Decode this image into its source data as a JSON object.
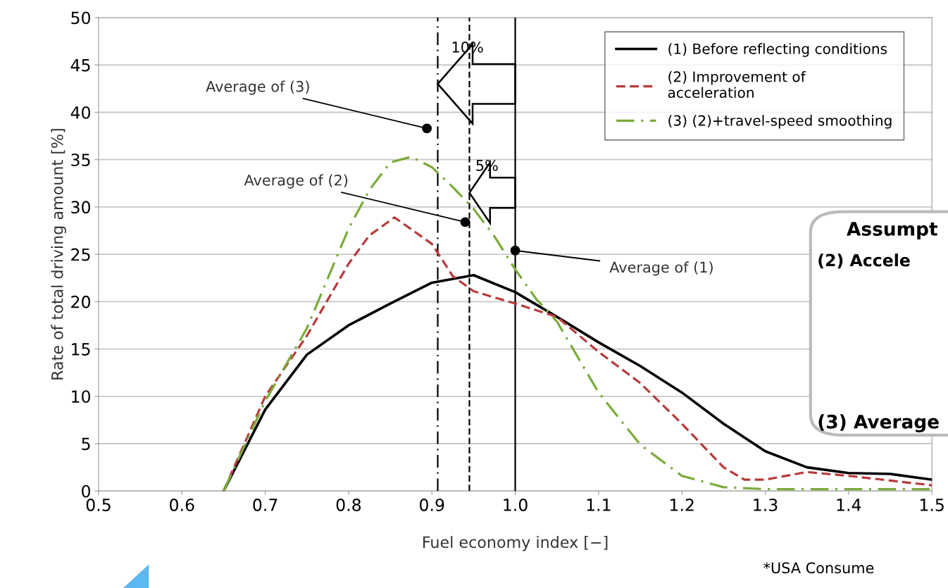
{
  "chart_data": {
    "type": "line",
    "xlabel": "Fuel economy index [−]",
    "ylabel": "Rate of total driving amount [%]",
    "xlim": [
      0.5,
      1.5
    ],
    "xticks": [
      {
        "value": 0.5,
        "label": "0.5"
      },
      {
        "value": 0.6,
        "label": "0.6"
      },
      {
        "value": 0.7,
        "label": "0.7"
      },
      {
        "value": 0.8,
        "label": "0.8"
      },
      {
        "value": 0.9,
        "label": "0.9"
      },
      {
        "value": 1.0,
        "label": "1.0"
      },
      {
        "value": 1.1,
        "label": "1.1"
      },
      {
        "value": 1.2,
        "label": "1.2"
      },
      {
        "value": 1.3,
        "label": "1.3"
      },
      {
        "value": 1.4,
        "label": "1.4"
      },
      {
        "value": 1.5,
        "label": "1.5"
      }
    ],
    "ylim": [
      0,
      50
    ],
    "yticks": [
      0,
      5,
      10,
      15,
      20,
      25,
      30,
      35,
      40,
      45,
      50
    ],
    "grid": "y",
    "legend": "top right",
    "marker": "none",
    "series": [
      {
        "name": "(1) Before reflecting conditions",
        "color": "#000000",
        "line_style": "solid",
        "x": [
          0.65,
          0.7,
          0.75,
          0.8,
          0.85,
          0.9,
          0.95,
          1.0,
          1.05,
          1.1,
          1.15,
          1.2,
          1.25,
          1.3,
          1.35,
          1.4,
          1.45,
          1.5
        ],
        "values": [
          0,
          8.6,
          14.4,
          17.5,
          19.8,
          22.0,
          22.8,
          21.0,
          18.4,
          15.7,
          13.2,
          10.4,
          7.1,
          4.2,
          2.5,
          1.9,
          1.8,
          1.2
        ]
      },
      {
        "name": "(2) Improvement of\nacceleration",
        "color": "#b83b3b",
        "line_style": "dashed",
        "x": [
          0.65,
          0.7,
          0.75,
          0.8,
          0.825,
          0.855,
          0.9,
          0.925,
          0.95,
          1.0,
          1.05,
          1.1,
          1.15,
          1.2,
          1.25,
          1.275,
          1.3,
          1.35,
          1.4,
          1.45,
          1.5
        ],
        "values": [
          0,
          10.0,
          16.4,
          24.0,
          27.0,
          28.9,
          26.1,
          22.7,
          21.1,
          19.8,
          18.4,
          14.7,
          11.4,
          7.1,
          2.5,
          1.2,
          1.2,
          2.0,
          1.6,
          1.1,
          0.6
        ]
      },
      {
        "name": "(3) (2)+travel-speed smoothing",
        "color": "#7aab3a",
        "line_style": "dashdot",
        "x": [
          0.65,
          0.7,
          0.75,
          0.8,
          0.825,
          0.85,
          0.875,
          0.9,
          0.925,
          0.95,
          0.975,
          1.0,
          1.025,
          1.05,
          1.1,
          1.15,
          1.2,
          1.25,
          1.3,
          1.4,
          1.5
        ],
        "values": [
          0,
          9.5,
          17.2,
          27.7,
          31.8,
          34.7,
          35.3,
          34.2,
          32.1,
          29.8,
          26.9,
          23.4,
          20.3,
          17.9,
          10.4,
          4.9,
          1.6,
          0.4,
          0.2,
          0.2,
          0.2
        ]
      }
    ],
    "ref_lines": [
      {
        "axis": "x",
        "value": 0.907,
        "label": null,
        "color": "#000000",
        "line_style": "dashdot"
      },
      {
        "axis": "x",
        "value": 0.945,
        "label": null,
        "color": "#000000",
        "line_style": "dashed"
      },
      {
        "axis": "x",
        "value": 1.0,
        "label": null,
        "color": "#000000",
        "line_style": "solid"
      }
    ],
    "annotations": [
      {
        "text": "Average of (3)",
        "x": 0.894,
        "y": 38.3
      },
      {
        "text": "Average of (2)",
        "x": 0.94,
        "y": 28.4
      },
      {
        "text": "Average of (1)",
        "x": 1.0,
        "y": 25.4
      },
      {
        "text": "10%",
        "x": 0.907,
        "y": 43
      },
      {
        "text": "5%",
        "x": 0.945,
        "y": 31.5
      },
      "Assumpt",
      "(2) Accele",
      "(3) Average",
      "*USA Consume"
    ]
  }
}
